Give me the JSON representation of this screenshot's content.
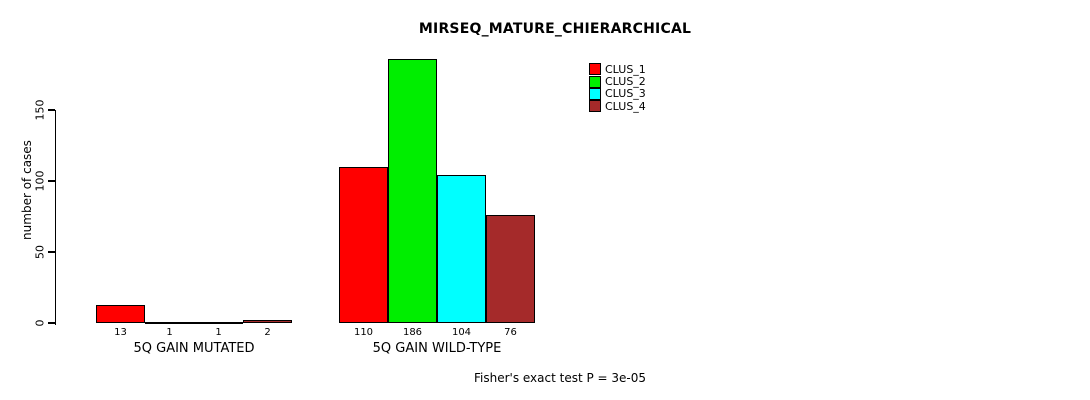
{
  "title": "MIRSEQ_MATURE_CHIERARCHICAL",
  "chart_data": {
    "type": "bar",
    "title": "MIRSEQ_MATURE_CHIERARCHICAL",
    "xlabel": "",
    "ylabel": "number of cases",
    "categories": [
      "5Q GAIN MUTATED",
      "5Q GAIN WILD-TYPE"
    ],
    "series": [
      {
        "name": "CLUS_1",
        "color": "#FF0000",
        "values": [
          13,
          110
        ]
      },
      {
        "name": "CLUS_2",
        "color": "#00EE00",
        "values": [
          1,
          186
        ]
      },
      {
        "name": "CLUS_3",
        "color": "#00FFFF",
        "values": [
          1,
          104
        ]
      },
      {
        "name": "CLUS_4",
        "color": "#A52A2A",
        "values": [
          2,
          76
        ]
      }
    ],
    "value_labels_shown": true,
    "yticks": [
      0,
      50,
      100,
      150
    ],
    "ylim": [
      0,
      186
    ],
    "grid": false,
    "legend_position": "top-right",
    "annotation": "Fisher's exact test P = 3e-05"
  }
}
